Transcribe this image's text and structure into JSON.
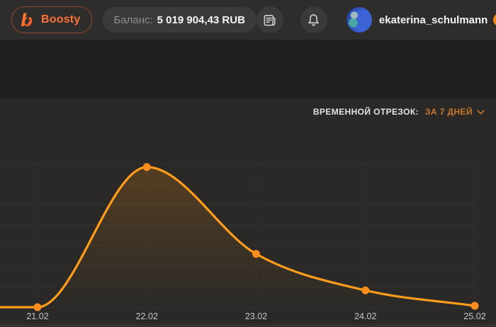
{
  "header": {
    "logo_label": "Boosty",
    "balance_label": "Баланс:",
    "balance_amount": "5 019 904,43 RUB",
    "user_name": "ekaterina_schulmann",
    "user_verified": true,
    "icons": {
      "logo": "boosty-lightning-b-icon",
      "blog": "blog-posts-icon",
      "notifications": "bell-icon",
      "verified": "verified-check-icon",
      "user_menu": "chevron-down-icon"
    }
  },
  "stats": {
    "period_label": "ВРЕМЕННОЙ ОТРЕЗОК:",
    "period_value": "ЗА 7 ДНЕЙ"
  },
  "chart_data": {
    "type": "line",
    "title": "",
    "categories": [
      "21.02",
      "22.02",
      "23.02",
      "24.02",
      "25.02"
    ],
    "values": [
      0,
      1,
      0.38,
      0.12,
      0.01
    ],
    "value_scale": "normalized; no y-axis tick labels are visible in the chart, peak day 22.02 = 1",
    "leading_flat_segment": true,
    "xlabel": "",
    "ylabel": "",
    "ylim": [
      0,
      1.03
    ],
    "grid": true,
    "legend": false,
    "line_color": "#ff9c1b",
    "point_color": "#fb8c1e",
    "area_fill_top": "rgba(255,145,10,0.20)",
    "area_fill_bottom": "rgba(255,145,10,0)",
    "grid_color": "#3c3936",
    "axis_label_color": "#c6c5c3"
  },
  "colors": {
    "header_bg": "#2e2d2b",
    "cover_band_bg": "#201f1e",
    "section_bg": "#2a2927",
    "pill_bg": "#3b3a38",
    "accent_orange": "#ff7239",
    "period_orange": "#c9772d",
    "verified_badge": "#f0891c"
  }
}
